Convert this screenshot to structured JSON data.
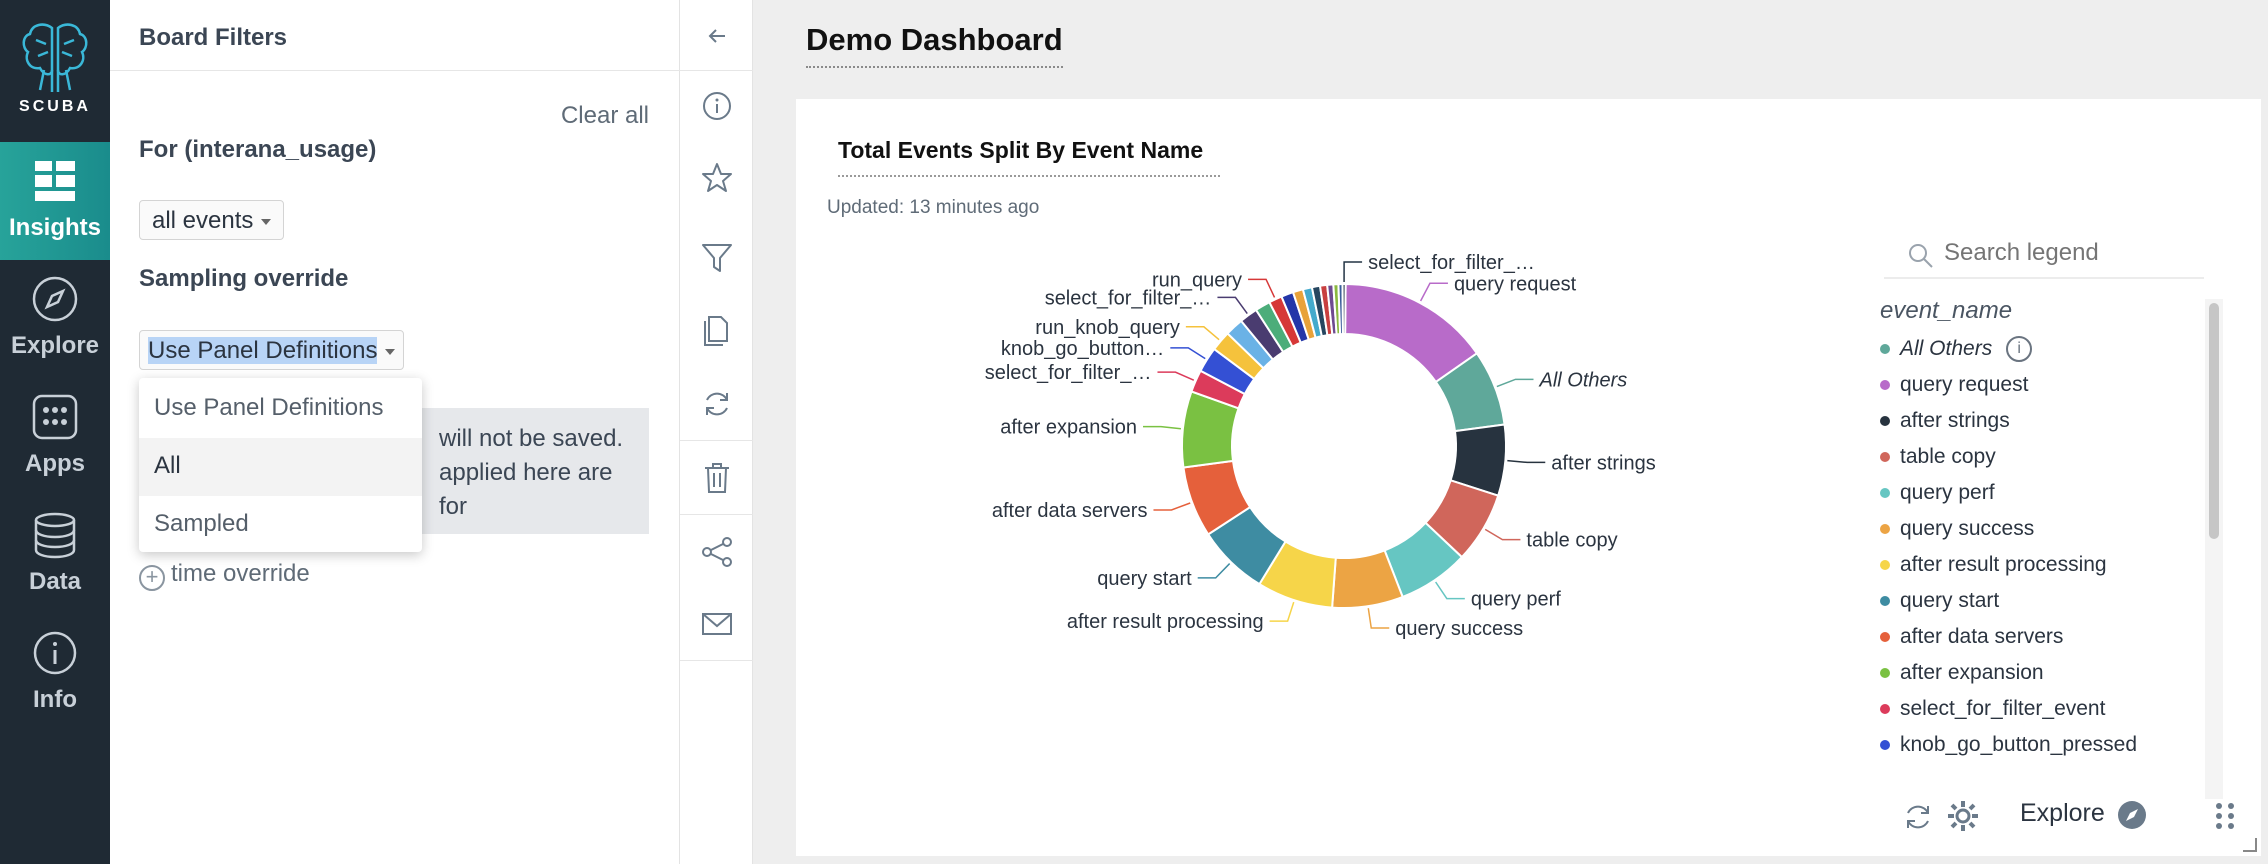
{
  "brand": {
    "name": "SCUBA"
  },
  "nav": {
    "items": [
      {
        "label": "Insights",
        "icon": "insights-grid-icon",
        "active": true
      },
      {
        "label": "Explore",
        "icon": "compass-icon"
      },
      {
        "label": "Apps",
        "icon": "apps-icon"
      },
      {
        "label": "Data",
        "icon": "database-icon"
      },
      {
        "label": "Info",
        "icon": "info-icon"
      }
    ]
  },
  "filters": {
    "title": "Board Filters",
    "clear_all": "Clear all",
    "for_label": "For (interana_usage)",
    "events_select": "all events",
    "sampling_label": "Sampling override",
    "sampling_select": "Use Panel Definitions",
    "notice_line1": "will not be saved.",
    "notice_line2": "applied here are for",
    "time_override": "time override",
    "dropdown_options": [
      "Use Panel Definitions",
      "All",
      "Sampled"
    ]
  },
  "toolbar": {
    "icons": [
      "collapse-arrow-icon",
      "info-icon",
      "star-icon",
      "filter-icon",
      "copy-icon",
      "refresh-icon",
      "trash-icon",
      "share-icon",
      "email-icon"
    ]
  },
  "board": {
    "title": "Demo Dashboard"
  },
  "panel": {
    "title": "Total Events Split By Event Name",
    "updated": "Updated: 13 minutes ago",
    "legend_placeholder": "Search legend",
    "legend_header": "event_name",
    "footer_explore": "Explore"
  },
  "chart_data": {
    "type": "pie",
    "donut": true,
    "title": "Total Events Split By Event Name",
    "legend_title": "event_name",
    "legend_placement": "right",
    "slices": [
      {
        "label": "query request",
        "value": 15.0,
        "color": "#b86bc9"
      },
      {
        "label": "All Others",
        "value": 7.5,
        "color": "#5fa89a"
      },
      {
        "label": "after strings",
        "value": 7.0,
        "color": "#27333f"
      },
      {
        "label": "table copy",
        "value": 7.0,
        "color": "#d0665b"
      },
      {
        "label": "query perf",
        "value": 7.0,
        "color": "#66c6c2"
      },
      {
        "label": "query success",
        "value": 7.0,
        "color": "#eca444"
      },
      {
        "label": "after result processing",
        "value": 7.5,
        "color": "#f6d549"
      },
      {
        "label": "query start",
        "value": 7.0,
        "color": "#3e8ca2"
      },
      {
        "label": "after data servers",
        "value": 7.0,
        "color": "#e5603b"
      },
      {
        "label": "after expansion",
        "value": 7.5,
        "color": "#7ac142"
      },
      {
        "label": "select_for_filter_…",
        "value": 2.2,
        "color": "#dc3b5b"
      },
      {
        "label": "knob_go_button…",
        "value": 2.5,
        "color": "#3450d4"
      },
      {
        "label": "run_knob_query",
        "value": 2.0,
        "color": "#f5c23c"
      },
      {
        "label": "",
        "value": 1.8,
        "color": "#6ab2e6"
      },
      {
        "label": "select_for_filter_…",
        "value": 1.8,
        "color": "#4a3c70"
      },
      {
        "label": "",
        "value": 1.5,
        "color": "#4cad7a"
      },
      {
        "label": "run_query",
        "value": 1.3,
        "color": "#d63838"
      },
      {
        "label": "",
        "value": 1.2,
        "color": "#2436a8"
      },
      {
        "label": "",
        "value": 1.0,
        "color": "#e8a23a"
      },
      {
        "label": "",
        "value": 0.9,
        "color": "#44aacc"
      },
      {
        "label": "",
        "value": 0.8,
        "color": "#264660"
      },
      {
        "label": "",
        "value": 0.7,
        "color": "#c84040"
      },
      {
        "label": "",
        "value": 0.6,
        "color": "#6e4a90"
      },
      {
        "label": "",
        "value": 0.5,
        "color": "#8ab840"
      },
      {
        "label": "",
        "value": 0.4,
        "color": "#3a5e9a"
      },
      {
        "label": "select_for_filter_…",
        "value": 0.3,
        "color": "#223344"
      }
    ],
    "legend": [
      {
        "label": "All Others",
        "color": "#5fa89a",
        "italic": true,
        "info": true
      },
      {
        "label": "query request",
        "color": "#b86bc9"
      },
      {
        "label": "after strings",
        "color": "#27333f"
      },
      {
        "label": "table copy",
        "color": "#d0665b"
      },
      {
        "label": "query perf",
        "color": "#66c6c2"
      },
      {
        "label": "query success",
        "color": "#eca444"
      },
      {
        "label": "after result processing",
        "color": "#f6d549"
      },
      {
        "label": "query start",
        "color": "#3e8ca2"
      },
      {
        "label": "after data servers",
        "color": "#e5603b"
      },
      {
        "label": "after expansion",
        "color": "#7ac142"
      },
      {
        "label": "select_for_filter_event",
        "color": "#dc3b5b"
      },
      {
        "label": "knob_go_button_pressed",
        "color": "#3450d4"
      }
    ]
  },
  "colors": {
    "nav_bg": "#1f2a34",
    "active_nav": "#27a39a",
    "selection": "#b8d4f6"
  }
}
